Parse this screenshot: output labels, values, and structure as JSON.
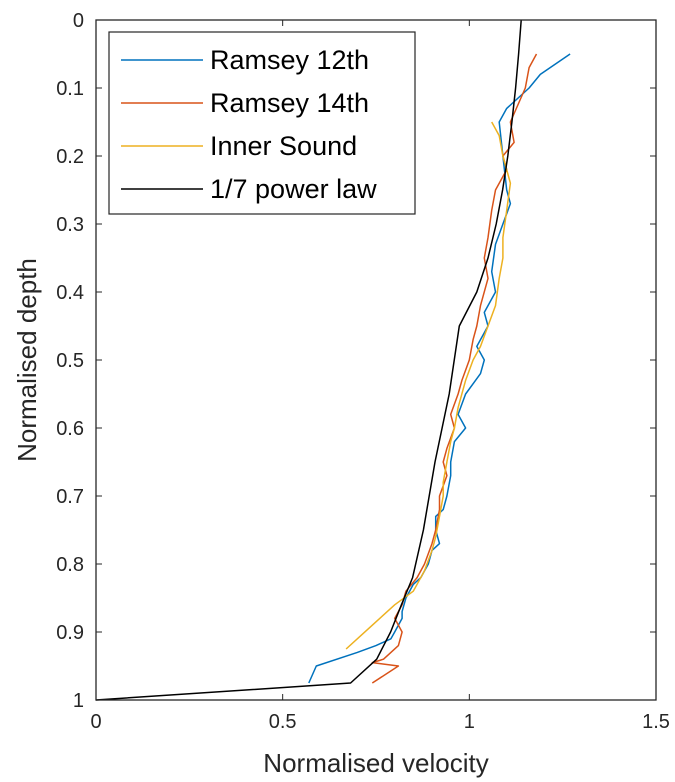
{
  "chart_data": {
    "type": "line",
    "xlabel": "Normalised velocity",
    "ylabel": "Normalised depth",
    "xlim": [
      0,
      1.5
    ],
    "ylim": [
      0,
      1
    ],
    "y_reversed": true,
    "xticks": [
      "0",
      "0.5",
      "1",
      "1.5"
    ],
    "yticks": [
      "0",
      "0.1",
      "0.2",
      "0.3",
      "0.4",
      "0.5",
      "0.6",
      "0.7",
      "0.8",
      "0.9",
      "1"
    ],
    "grid": false,
    "legend_position": "top-left",
    "series": [
      {
        "name": "Ramsey 12th",
        "color": "#0072BD",
        "x": [
          1.27,
          1.19,
          1.16,
          1.1,
          1.08,
          1.09,
          1.1,
          1.11,
          1.09,
          1.07,
          1.06,
          1.07,
          1.04,
          1.05,
          1.02,
          1.04,
          1.03,
          0.99,
          0.97,
          0.99,
          0.96,
          0.95,
          0.95,
          0.94,
          0.93,
          0.91,
          0.91,
          0.92,
          0.9,
          0.89,
          0.87,
          0.85,
          0.83,
          0.82,
          0.82,
          0.8,
          0.79,
          0.75,
          0.7,
          0.59,
          0.57
        ],
        "y": [
          0.05,
          0.08,
          0.1,
          0.13,
          0.15,
          0.2,
          0.25,
          0.27,
          0.3,
          0.33,
          0.37,
          0.4,
          0.43,
          0.45,
          0.48,
          0.5,
          0.52,
          0.55,
          0.58,
          0.6,
          0.62,
          0.65,
          0.67,
          0.7,
          0.72,
          0.73,
          0.75,
          0.77,
          0.78,
          0.8,
          0.82,
          0.83,
          0.85,
          0.87,
          0.88,
          0.9,
          0.91,
          0.92,
          0.93,
          0.95,
          0.975
        ]
      },
      {
        "name": "Ramsey 14th",
        "color": "#D95319",
        "x": [
          1.18,
          1.16,
          1.15,
          1.11,
          1.12,
          1.09,
          1.1,
          1.07,
          1.06,
          1.05,
          1.04,
          1.05,
          1.03,
          1.02,
          1.01,
          1.0,
          0.98,
          0.97,
          0.95,
          0.96,
          0.94,
          0.93,
          0.94,
          0.92,
          0.92,
          0.91,
          0.9,
          0.88,
          0.86,
          0.83,
          0.82,
          0.8,
          0.82,
          0.81,
          0.79,
          0.77,
          0.74,
          0.81,
          0.74
        ],
        "y": [
          0.05,
          0.07,
          0.1,
          0.15,
          0.18,
          0.2,
          0.22,
          0.25,
          0.28,
          0.32,
          0.35,
          0.38,
          0.42,
          0.45,
          0.47,
          0.5,
          0.53,
          0.55,
          0.58,
          0.6,
          0.63,
          0.65,
          0.67,
          0.7,
          0.72,
          0.75,
          0.77,
          0.8,
          0.82,
          0.84,
          0.86,
          0.88,
          0.9,
          0.92,
          0.93,
          0.94,
          0.945,
          0.95,
          0.975
        ]
      },
      {
        "name": "Inner Sound",
        "color": "#EDB120",
        "x": [
          1.06,
          1.08,
          1.09,
          1.11,
          1.1,
          1.09,
          1.09,
          1.08,
          1.07,
          1.05,
          1.03,
          1.01,
          0.99,
          0.97,
          0.96,
          0.95,
          0.94,
          0.93,
          0.93,
          0.92,
          0.91,
          0.9,
          0.88,
          0.85,
          0.8,
          0.74,
          0.67
        ],
        "y": [
          0.15,
          0.17,
          0.2,
          0.24,
          0.28,
          0.32,
          0.35,
          0.38,
          0.42,
          0.45,
          0.48,
          0.5,
          0.53,
          0.57,
          0.6,
          0.62,
          0.65,
          0.68,
          0.7,
          0.73,
          0.76,
          0.78,
          0.81,
          0.84,
          0.86,
          0.89,
          0.925
        ]
      },
      {
        "name": "1/7 power law",
        "color": "#000000",
        "x": [
          1.139,
          1.132,
          1.124,
          1.114,
          1.103,
          1.089,
          1.072,
          1.05,
          1.02,
          0.973,
          0.946,
          0.908,
          0.877,
          0.848,
          0.818,
          0.789,
          0.752,
          0.682,
          0.0
        ],
        "y": [
          0.0,
          0.05,
          0.1,
          0.15,
          0.2,
          0.25,
          0.3,
          0.35,
          0.4,
          0.45,
          0.55,
          0.65,
          0.75,
          0.82,
          0.86,
          0.9,
          0.94,
          0.975,
          1.0
        ]
      }
    ]
  }
}
